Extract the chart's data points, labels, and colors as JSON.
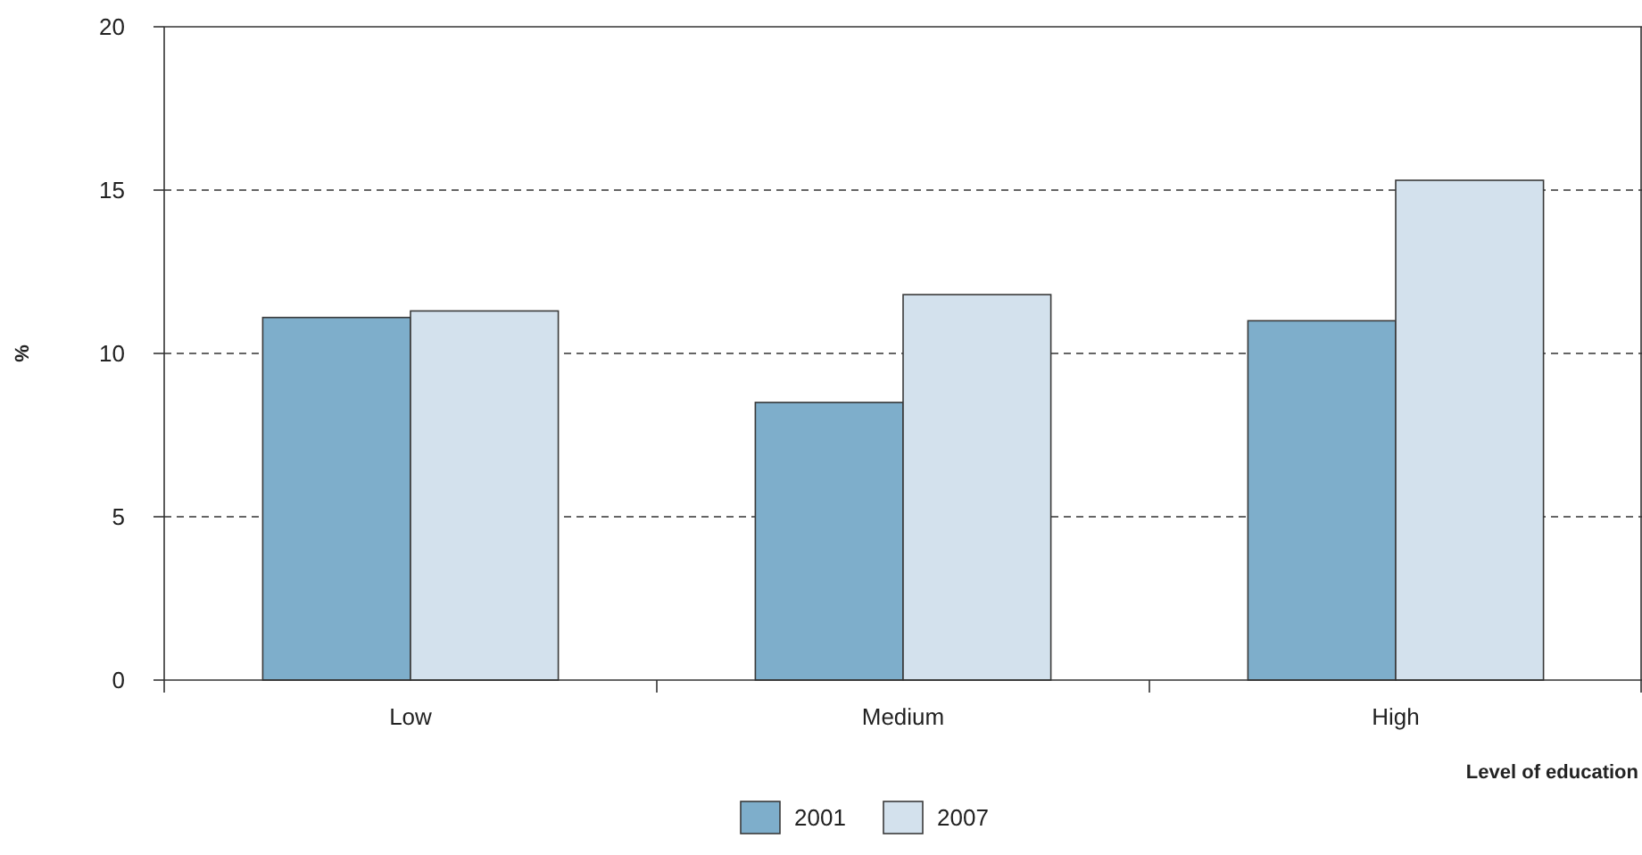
{
  "chart_data": {
    "type": "bar",
    "xlabel": "Level of education",
    "ylabel": "%",
    "categories": [
      "Low",
      "Medium",
      "High"
    ],
    "series": [
      {
        "name": "2001",
        "color": "#7eaecb",
        "values": [
          11.1,
          8.5,
          11.0
        ]
      },
      {
        "name": "2007",
        "color": "#d3e1ed",
        "values": [
          11.3,
          11.8,
          15.3
        ]
      }
    ],
    "ylim": [
      0,
      20
    ],
    "yticks": [
      0,
      5,
      10,
      15,
      20
    ],
    "grid": "y",
    "legend": "bottom"
  }
}
